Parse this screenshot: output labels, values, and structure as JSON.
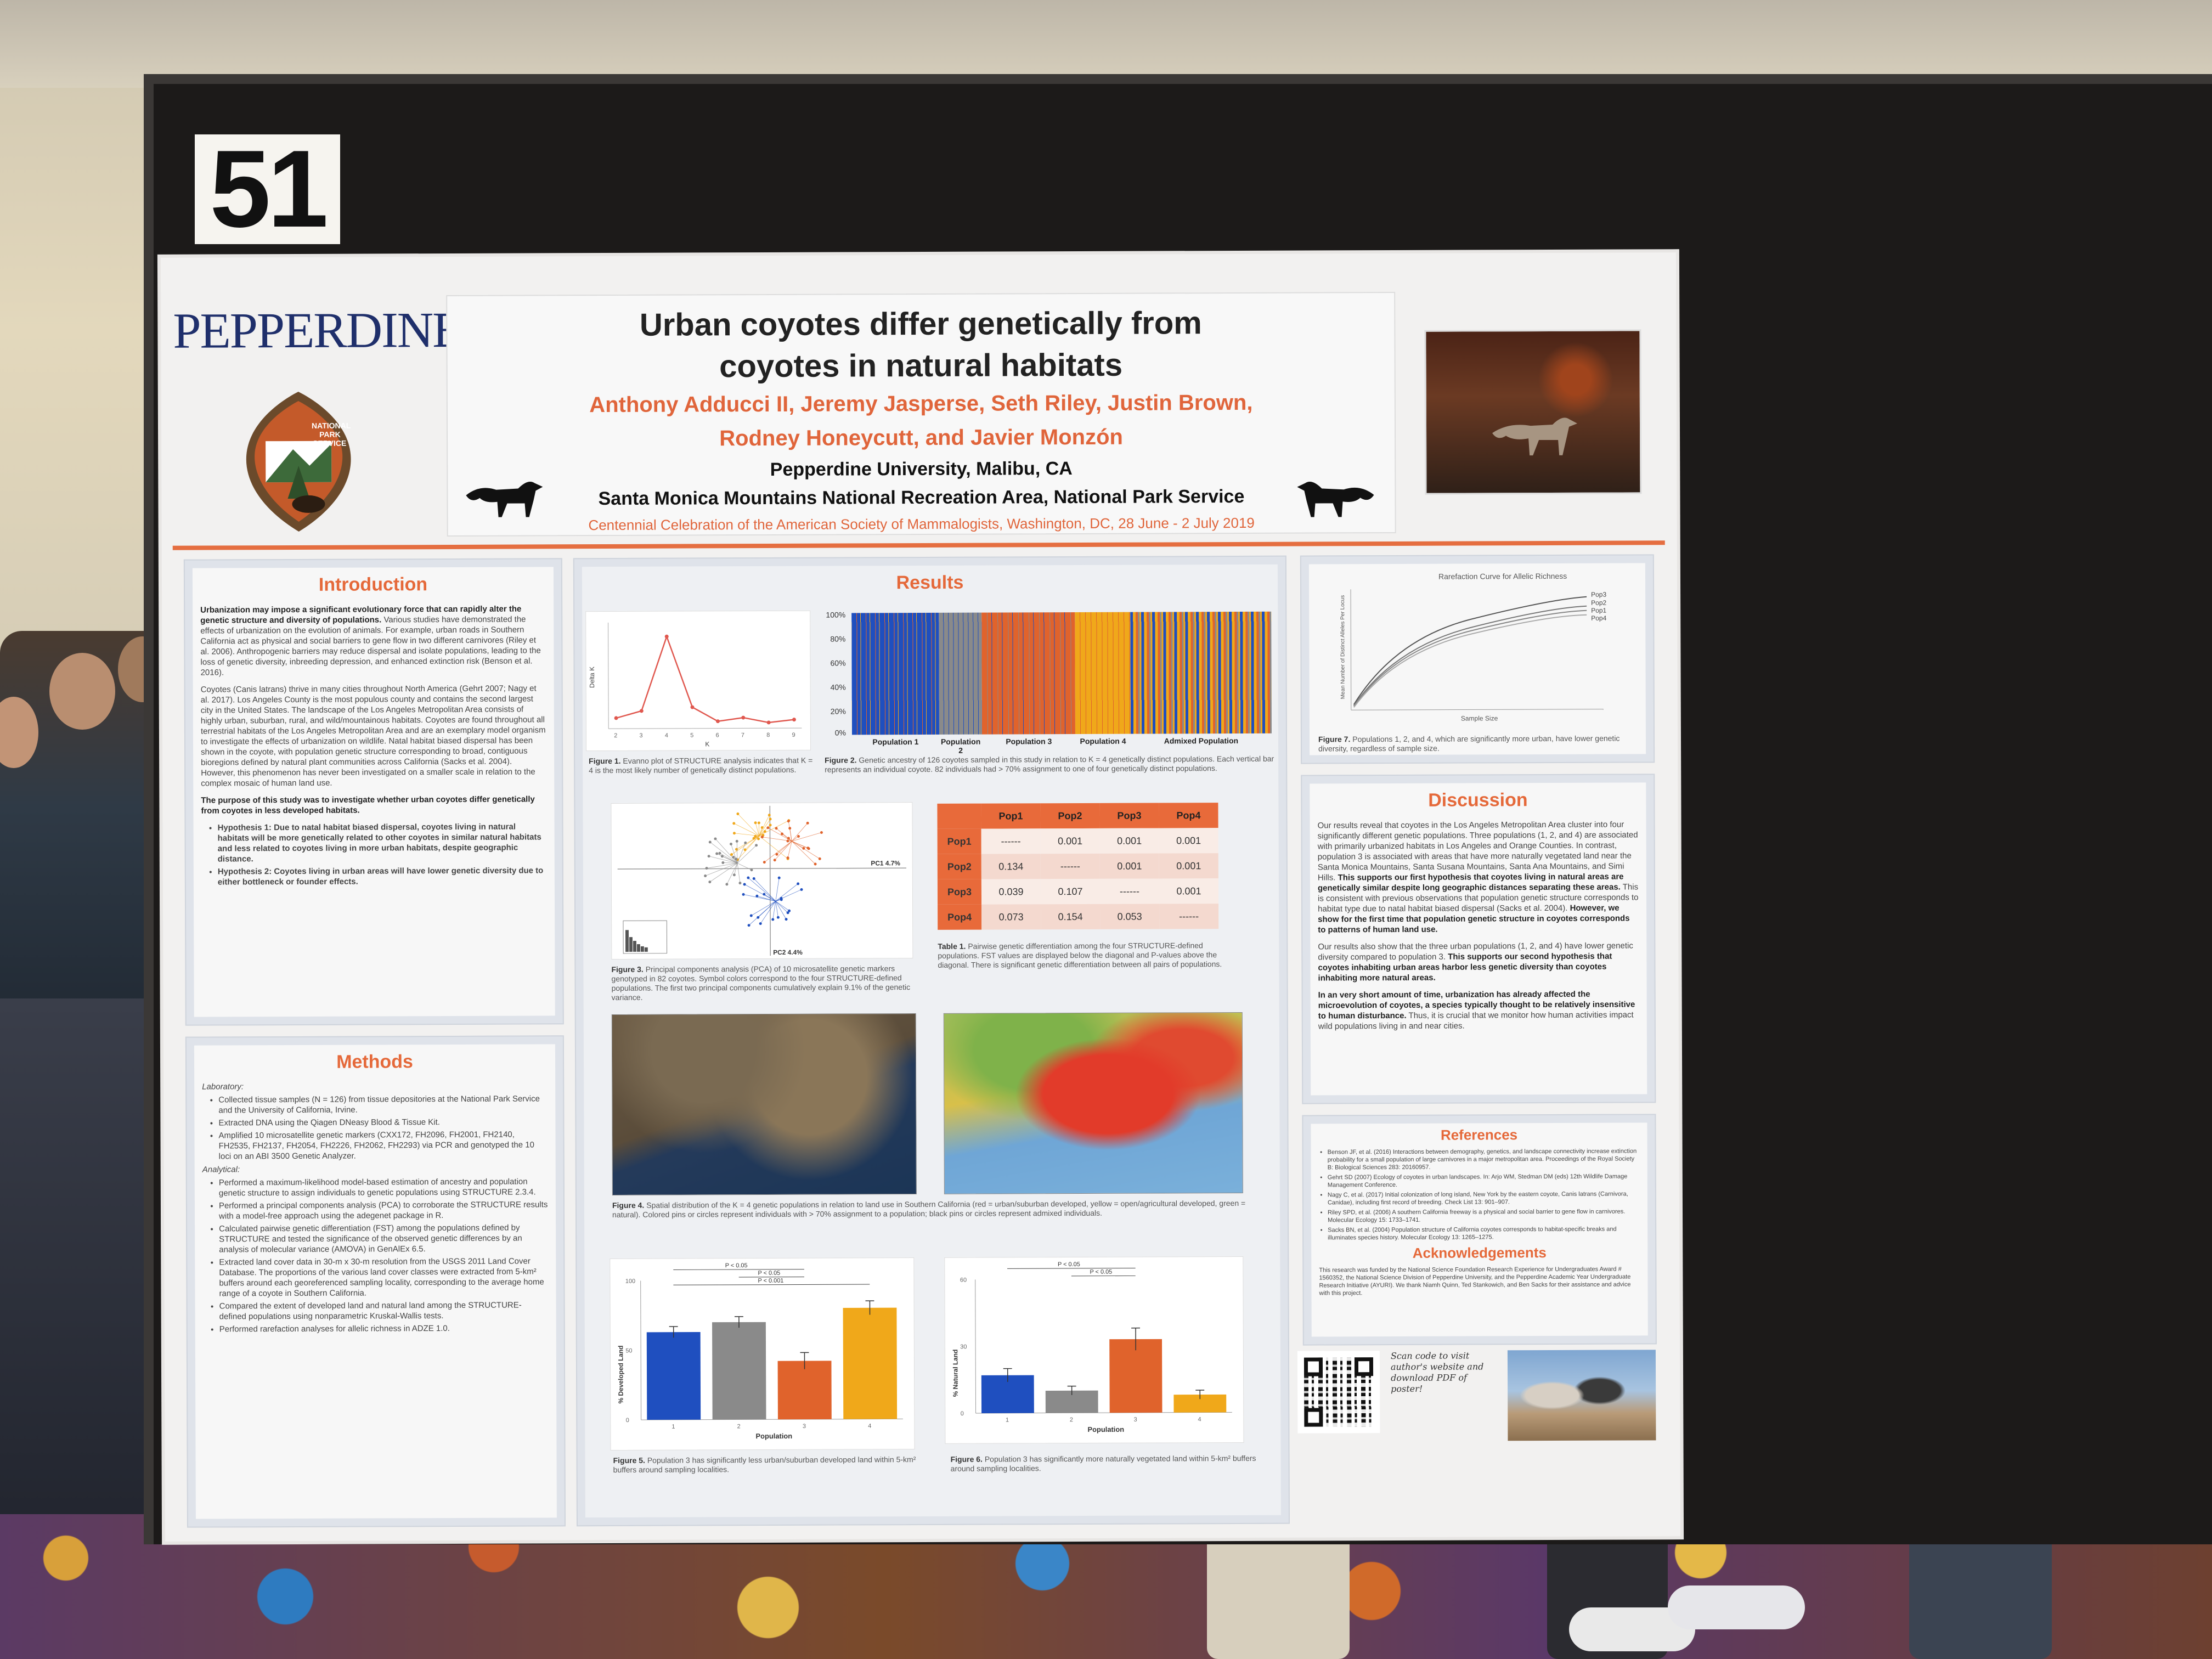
{
  "board_number": "51",
  "poster": {
    "logo_text": "PEPPERDINE",
    "badge_text": [
      "NATIONAL",
      "PARK",
      "SERVICE"
    ],
    "title_line1": "Urban coyotes differ genetically from",
    "title_line2": "coyotes in natural habitats",
    "authors_line1": "Anthony Adducci II, Jeremy Jasperse, Seth Riley, Justin Brown,",
    "authors_line2": "Rodney Honeycutt, and Javier Monzón",
    "affiliation1": "Pepperdine University, Malibu, CA",
    "affiliation2": "Santa Monica Mountains National Recreation Area, National Park Service",
    "conference": "Centennial Celebration of the American Society of Mammalogists, Washington, DC, 28 June - 2 July 2019",
    "introduction": {
      "title": "Introduction",
      "p1_bold": "Urbanization may impose a significant evolutionary force that can rapidly alter the genetic structure and diversity of populations.",
      "p1_rest": "Various studies have demonstrated the effects of urbanization on the evolution of animals. For example, urban roads in Southern California act as physical and social barriers to gene flow in two different carnivores (Riley et al. 2006). Anthropogenic barriers may reduce dispersal and isolate populations, leading to the loss of genetic diversity, inbreeding depression, and enhanced extinction risk (Benson et al. 2016).",
      "p2": "Coyotes (Canis latrans) thrive in many cities throughout North America (Gehrt 2007; Nagy et al. 2017). Los Angeles County is the most populous county and contains the second largest city in the United States. The landscape of the Los Angeles Metropolitan Area consists of highly urban, suburban, rural, and wild/mountainous habitats. Coyotes are found throughout all terrestrial habitats of the Los Angeles Metropolitan Area and are an exemplary model organism to investigate the effects of urbanization on wildlife. Natal habitat biased dispersal has been shown in the coyote, with population genetic structure corresponding to broad, contiguous bioregions defined by natural plant communities across California (Sacks et al. 2004). However, this phenomenon has never been investigated on a smaller scale in relation to the complex mosaic of human land use.",
      "p3_bold": "The purpose of this study was to investigate whether urban coyotes differ genetically from coyotes in less developed habitats.",
      "hypotheses": [
        "Hypothesis 1: Due to natal habitat biased dispersal, coyotes living in natural habitats will be more genetically related to other coyotes in similar natural habitats and less related to coyotes living in more urban habitats, despite geographic distance.",
        "Hypothesis 2: Coyotes living in urban areas will have lower genetic diversity due to either bottleneck or founder effects."
      ]
    },
    "methods": {
      "title": "Methods",
      "lab_head": "Laboratory:",
      "lab_items": [
        "Collected tissue samples (N = 126) from tissue depositories at the National Park Service and the University of California, Irvine.",
        "Extracted DNA using the Qiagen DNeasy Blood & Tissue Kit.",
        "Amplified 10 microsatellite genetic markers (CXX172, FH2096, FH2001, FH2140, FH2535, FH2137, FH2054, FH2226, FH2062, FH2293) via PCR and genotyped the 10 loci on an ABI 3500 Genetic Analyzer."
      ],
      "ana_head": "Analytical:",
      "ana_items": [
        "Performed a maximum-likelihood model-based estimation of ancestry and population genetic structure to assign individuals to genetic populations using STRUCTURE 2.3.4.",
        "Performed a principal components analysis (PCA) to corroborate the STRUCTURE results with a model-free approach using the adegenet package in R.",
        "Calculated pairwise genetic differentiation (FST) among the populations defined by STRUCTURE and tested the significance of the observed genetic differences by an analysis of molecular variance (AMOVA) in GenAlEx 6.5.",
        "Extracted land cover data in 30-m x 30-m resolution from the USGS 2011 Land Cover Database. The proportions of the various land cover classes were extracted from 5-km² buffers around each georeferenced sampling locality, corresponding to the average home range of a coyote in Southern California.",
        "Compared the extent of developed land and natural land among the STRUCTURE-defined populations using nonparametric Kruskal-Wallis tests.",
        "Performed rarefaction analyses for allelic richness in ADZE 1.0."
      ]
    },
    "results": {
      "title": "Results",
      "fig1_caption_bold": "Figure 1.",
      "fig1_caption": "Evanno plot of STRUCTURE analysis indicates that K = 4 is the most likely number of genetically distinct populations.",
      "fig2_caption_bold": "Figure 2.",
      "fig2_caption": "Genetic ancestry of 126 coyotes sampled in this study in relation to K = 4 genetically distinct populations. Each vertical bar represents an individual coyote. 82 individuals had > 70% assignment to one of four genetically distinct populations.",
      "fig2_ylabels": [
        "100%",
        "80%",
        "60%",
        "40%",
        "20%",
        "0%"
      ],
      "fig2_groups": [
        "Population 1",
        "Population 2",
        "Population 3",
        "Population 4",
        "Admixed Population"
      ],
      "fig3_caption_bold": "Figure 3.",
      "fig3_caption": "Principal components analysis (PCA) of 10 microsatellite genetic markers genotyped in 82 coyotes. Symbol colors correspond to the four STRUCTURE-defined populations. The first two principal components cumulatively explain 9.1% of the genetic variance.",
      "fig3_pc1": "PC1 4.7%",
      "fig3_pc2": "PC2 4.4%",
      "table1": {
        "headers": [
          "",
          "Pop1",
          "Pop2",
          "Pop3",
          "Pop4"
        ],
        "rows": [
          [
            "Pop1",
            "------",
            "0.001",
            "0.001",
            "0.001"
          ],
          [
            "Pop2",
            "0.134",
            "------",
            "0.001",
            "0.001"
          ],
          [
            "Pop3",
            "0.039",
            "0.107",
            "------",
            "0.001"
          ],
          [
            "Pop4",
            "0.073",
            "0.154",
            "0.053",
            "------"
          ]
        ],
        "caption_bold": "Table 1.",
        "caption": "Pairwise genetic differentiation among the four STRUCTURE-defined populations. FST values are displayed below the diagonal and P-values above the diagonal. There is significant genetic differentiation between all pairs of populations."
      },
      "fig4_caption_bold": "Figure 4.",
      "fig4_caption": "Spatial distribution of the K = 4 genetic populations in relation to land use in Southern California (red = urban/suburban developed, yellow = open/agricultural developed, green = natural). Colored pins or circles represent individuals with > 70% assignment to a population; black pins or circles represent admixed individuals.",
      "fig5_caption_bold": "Figure 5.",
      "fig5_caption": "Population 3 has significantly less urban/suburban developed land within 5-km² buffers around sampling localities.",
      "fig5_ylabel": "% Developed Land",
      "fig5_xlabel": "Population",
      "fig5_sig": [
        "P < 0.05",
        "P < 0.05",
        "P < 0.001"
      ],
      "fig6_caption_bold": "Figure 6.",
      "fig6_caption": "Population 3 has significantly more naturally vegetated land within 5-km² buffers around sampling localities.",
      "fig6_ylabel": "% Natural Land",
      "fig6_xlabel": "Population",
      "fig6_sig": [
        "P < 0.05",
        "P < 0.05"
      ],
      "fig7_title": "Rarefaction Curve for Allelic Richness",
      "fig7_xlabel": "Sample Size",
      "fig7_ylabel": "Mean Number of Distinct Alleles Per Locus",
      "fig7_legend": [
        "Pop3",
        "Pop2",
        "Pop1",
        "Pop4"
      ],
      "fig7_caption_bold": "Figure 7.",
      "fig7_caption": "Populations 1, 2, and 4, which are significantly more urban, have lower genetic diversity, regardless of sample size."
    },
    "discussion": {
      "title": "Discussion",
      "p1": "Our results reveal that coyotes in the Los Angeles Metropolitan Area cluster into four significantly different genetic populations. Three populations (1, 2, and 4) are associated with primarily urbanized habitats in Los Angeles and Orange Counties. In contrast, population 3 is associated with areas that have more naturally vegetated land near the Santa Monica Mountains, Santa Susana Mountains, Santa Ana Mountains, and Simi Hills.",
      "p1_bold": "This supports our first hypothesis that coyotes living in natural areas are genetically similar despite long geographic distances separating these areas.",
      "p1_rest": "This is consistent with previous observations that population genetic structure corresponds to habitat type due to natal habitat biased dispersal (Sacks et al. 2004).",
      "p1_bold2": "However, we show for the first time that population genetic structure in coyotes corresponds to patterns of human land use.",
      "p2": "Our results also show that the three urban populations (1, 2, and 4) have lower genetic diversity compared to population 3.",
      "p2_bold": "This supports our second hypothesis that coyotes inhabiting urban areas harbor less genetic diversity than coyotes inhabiting more natural areas.",
      "p3_bold": "In an very short amount of time, urbanization has already affected the microevolution of coyotes, a species typically thought to be relatively insensitive to human disturbance.",
      "p3": "Thus, it is crucial that we monitor how human activities impact wild populations living in and near cities."
    },
    "references": {
      "title": "References",
      "items": [
        "Benson JF, et al. (2016) Interactions between demography, genetics, and landscape connectivity increase extinction probability for a small population of large carnivores in a major metropolitan area. Proceedings of the Royal Society B: Biological Sciences 283: 20160957.",
        "Gehrt SD (2007) Ecology of coyotes in urban landscapes. In: Arjo WM, Stedman DM (eds) 12th Wildlife Damage Management Conference.",
        "Nagy C, et al. (2017) Initial colonization of long island, New York by the eastern coyote, Canis latrans (Carnivora, Canidae), including first record of breeding. Check List 13: 901–907.",
        "Riley SPD, et al. (2006) A southern California freeway is a physical and social barrier to gene flow in carnivores. Molecular Ecology 15: 1733–1741.",
        "Sacks BN, et al. (2004) Population structure of California coyotes corresponds to habitat-specific breaks and illuminates species history. Molecular Ecology 13: 1265–1275."
      ]
    },
    "acknowledgements": {
      "title": "Acknowledgements",
      "text": "This research was funded by the National Science Foundation Research Experience for Undergraduates Award # 1560352, the National Science Division of Pepperdine University, and the Pepperdine Academic Year Undergraduate Research Initiative (AYURI). We thank Niamh Quinn, Ted Stankowich, and Ben Sacks for their assistance and advice with this project."
    },
    "scan_note": "Scan code to visit author's website and download PDF of poster!"
  },
  "chart_data": [
    {
      "type": "line",
      "x": [
        2,
        3,
        4,
        5,
        6,
        7,
        8,
        9
      ],
      "y": [
        1.5,
        2.5,
        13,
        3,
        1,
        1.5,
        0.8,
        1.2
      ],
      "xlabel": "K",
      "ylabel": "Delta K",
      "ylim": [
        0,
        15
      ],
      "color": "#e0584f"
    },
    {
      "type": "bar",
      "categories": [
        "1",
        "2",
        "3",
        "4"
      ],
      "values": [
        63,
        70,
        42,
        80
      ],
      "errors": [
        4,
        4,
        6,
        5
      ],
      "colors": [
        "#1f4fbf",
        "#8a8a8a",
        "#e0632c",
        "#f0a81a"
      ],
      "xlabel": "Population",
      "ylabel": "% Developed Land",
      "ylim": [
        0,
        100
      ]
    },
    {
      "type": "bar",
      "categories": [
        "1",
        "2",
        "3",
        "4"
      ],
      "values": [
        17,
        10,
        33,
        8
      ],
      "errors": [
        3,
        2,
        5,
        2
      ],
      "colors": [
        "#1f4fbf",
        "#8a8a8a",
        "#e0632c",
        "#f0a81a"
      ],
      "xlabel": "Population",
      "ylabel": "% Natural Land",
      "ylim": [
        0,
        60
      ]
    }
  ]
}
